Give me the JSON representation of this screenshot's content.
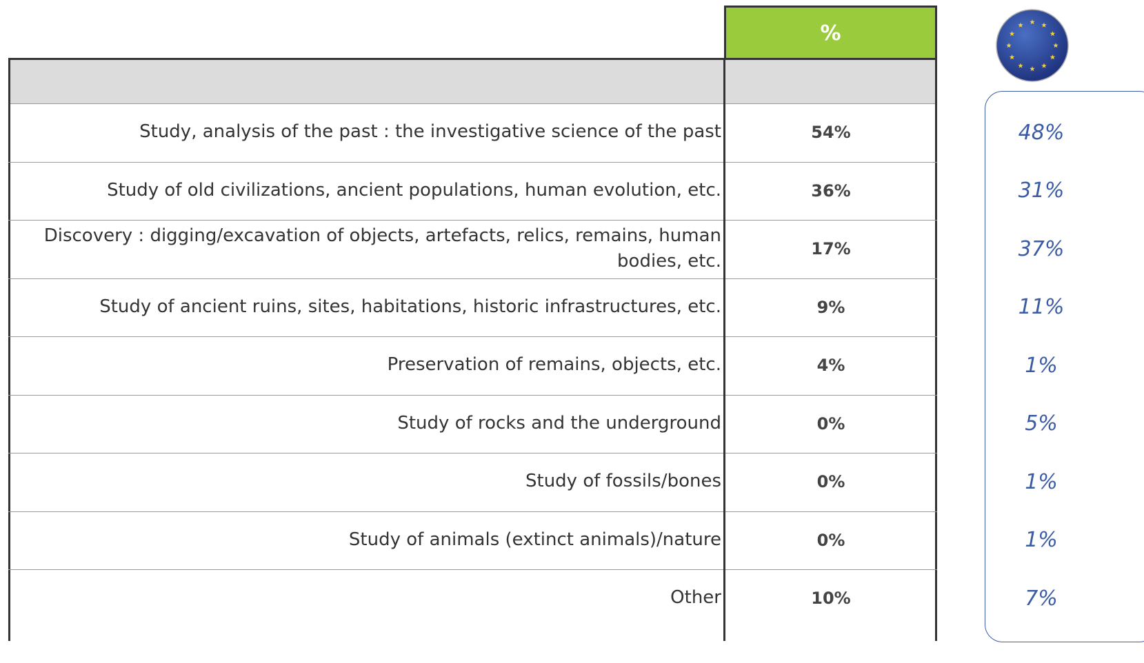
{
  "table": {
    "header": {
      "value": "%"
    },
    "rows": [
      {
        "label": "Study, analysis of the past : the investigative science of the past",
        "value": "54%",
        "eu": "48%"
      },
      {
        "label": "Study of old civilizations, ancient populations, human evolution, etc.",
        "value": "36%",
        "eu": "31%"
      },
      {
        "label": "Discovery : digging/excavation of objects, artefacts, relics, remains, human bodies, etc.",
        "value": "17%",
        "eu": "37%"
      },
      {
        "label": "Study of ancient ruins, sites, habitations, historic infrastructures, etc.",
        "value": "9%",
        "eu": "11%"
      },
      {
        "label": "Preservation of remains, objects, etc.",
        "value": "4%",
        "eu": "1%"
      },
      {
        "label": "Study of rocks and the underground",
        "value": "0%",
        "eu": "5%"
      },
      {
        "label": "Study of fossils/bones",
        "value": "0%",
        "eu": "1%"
      },
      {
        "label": "Study of animals (extinct animals)/nature",
        "value": "0%",
        "eu": "1%"
      },
      {
        "label": "Other",
        "value": "10%",
        "eu": "7%"
      }
    ]
  }
}
